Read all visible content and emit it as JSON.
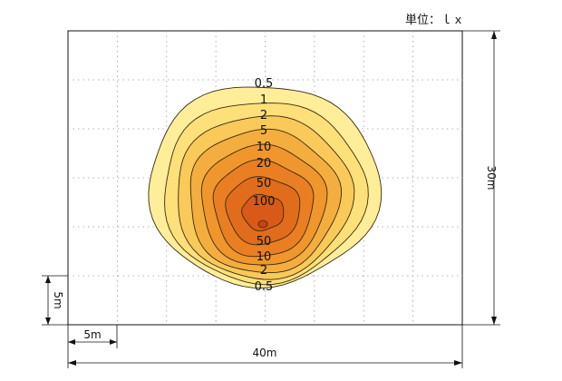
{
  "unit_label": "単位：ｌｘ",
  "dimensions": {
    "width_label": "40m",
    "height_label": "30m",
    "grid_label_x": "5m",
    "grid_label_y": "5m"
  },
  "contours": [
    {
      "value": "0.5",
      "color": "#ffee99"
    },
    {
      "value": "1",
      "color": "#fde07a"
    },
    {
      "value": "2",
      "color": "#f9c95a"
    },
    {
      "value": "5",
      "color": "#f4ae40"
    },
    {
      "value": "10",
      "color": "#ef962c"
    },
    {
      "value": "20",
      "color": "#e97f22"
    },
    {
      "value": "50",
      "color": "#e16c1c"
    },
    {
      "value": "100",
      "color": "#d95a18"
    }
  ],
  "upper_labels": [
    "0.5",
    "1",
    "2",
    "5",
    "10",
    "20",
    "50",
    "100"
  ],
  "lower_labels": [
    "50",
    "10",
    "2",
    "0.5"
  ],
  "colors": {
    "frame": "#111111",
    "grid": "#9a9a9a",
    "contour_line": "#3a2a10",
    "core": "#c8430f"
  }
}
